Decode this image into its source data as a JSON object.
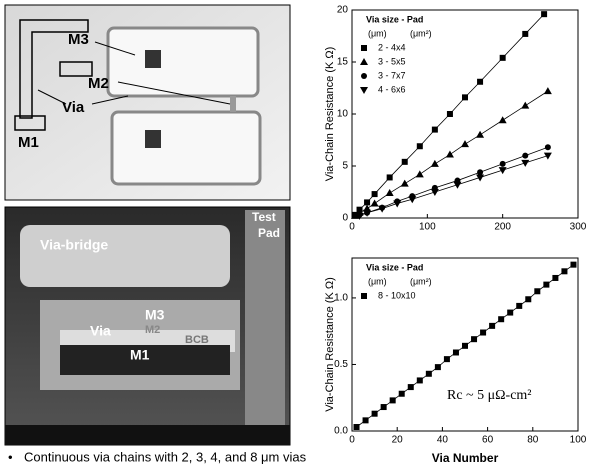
{
  "figures": {
    "top": {
      "labels": [
        "M3",
        "M2",
        "Via",
        "M1"
      ]
    },
    "bottom": {
      "labels": [
        "Via-bridge",
        "M3",
        "Via",
        "M2",
        "BCB",
        "M1"
      ],
      "test_pad": [
        "Test",
        "Pad"
      ]
    }
  },
  "caption": "Continuous via chains with 2, 3, 4, and 8 μm vias",
  "chart_data": [
    {
      "type": "line",
      "ylabel": "Via-Chain Resistance (K  Ω)",
      "legend_title": "Via size - Pad",
      "legend_units": [
        "(μm)",
        "(μm²)"
      ],
      "legend": "upper left",
      "xlim": [
        0,
        300
      ],
      "xticks": [
        0,
        100,
        200,
        300
      ],
      "ylim": [
        0,
        20
      ],
      "yticks": [
        0,
        5,
        10,
        15,
        20
      ],
      "series": [
        {
          "name": "2  -  4x4",
          "color": "#000000",
          "x": [
            4,
            10,
            20,
            30,
            50,
            70,
            90,
            110,
            130,
            150,
            170,
            200,
            230,
            255
          ],
          "values": [
            0.3,
            0.8,
            1.5,
            2.3,
            3.9,
            5.4,
            6.9,
            8.5,
            10.0,
            11.6,
            13.1,
            15.4,
            17.7,
            19.6
          ]
        },
        {
          "name": "3  -  5x5",
          "color": "#000000",
          "x": [
            4,
            10,
            20,
            30,
            50,
            70,
            90,
            110,
            130,
            150,
            170,
            200,
            230,
            260
          ],
          "values": [
            0.2,
            0.5,
            0.9,
            1.4,
            2.4,
            3.3,
            4.2,
            5.2,
            6.1,
            7.1,
            8.0,
            9.4,
            10.8,
            12.2
          ]
        },
        {
          "name": "3  -  7x7",
          "color": "#000000",
          "x": [
            10,
            20,
            40,
            60,
            80,
            110,
            140,
            170,
            200,
            230,
            260
          ],
          "values": [
            0.3,
            0.5,
            1.0,
            1.6,
            2.1,
            2.9,
            3.6,
            4.4,
            5.2,
            6.0,
            6.8
          ]
        },
        {
          "name": "4  -  6x6",
          "color": "#000000",
          "x": [
            10,
            20,
            40,
            60,
            80,
            110,
            140,
            170,
            200,
            230,
            260
          ],
          "values": [
            0.2,
            0.5,
            0.9,
            1.4,
            1.8,
            2.5,
            3.2,
            3.9,
            4.6,
            5.3,
            6.0
          ]
        }
      ]
    },
    {
      "type": "line",
      "ylabel": "Via-Chain Resistance (K  Ω)",
      "xlabel": "Via Number",
      "legend_title": "Via size - Pad",
      "legend_units": [
        "(μm)",
        "(μm²)"
      ],
      "legend": "upper left",
      "annotation": "Rc ~ 5 μΩ-cm²",
      "xlim": [
        0,
        100
      ],
      "xticks": [
        0,
        20,
        40,
        60,
        80,
        100
      ],
      "ylim": [
        0,
        1.3
      ],
      "yticks": [
        {
          "value": 0,
          "label": "0.0"
        },
        0.5,
        {
          "value": 1,
          "label": "1.0"
        }
      ],
      "series": [
        {
          "name": "8  -  10x10",
          "color": "#000000",
          "x": [
            2,
            6,
            10,
            14,
            18,
            22,
            26,
            30,
            34,
            38,
            42,
            46,
            50,
            54,
            58,
            62,
            66,
            70,
            74,
            78,
            82,
            86,
            90,
            94,
            98
          ],
          "values": [
            0.03,
            0.08,
            0.13,
            0.18,
            0.23,
            0.28,
            0.33,
            0.38,
            0.43,
            0.48,
            0.54,
            0.59,
            0.64,
            0.69,
            0.74,
            0.79,
            0.84,
            0.89,
            0.94,
            0.99,
            1.05,
            1.1,
            1.15,
            1.2,
            1.25
          ]
        }
      ]
    }
  ]
}
